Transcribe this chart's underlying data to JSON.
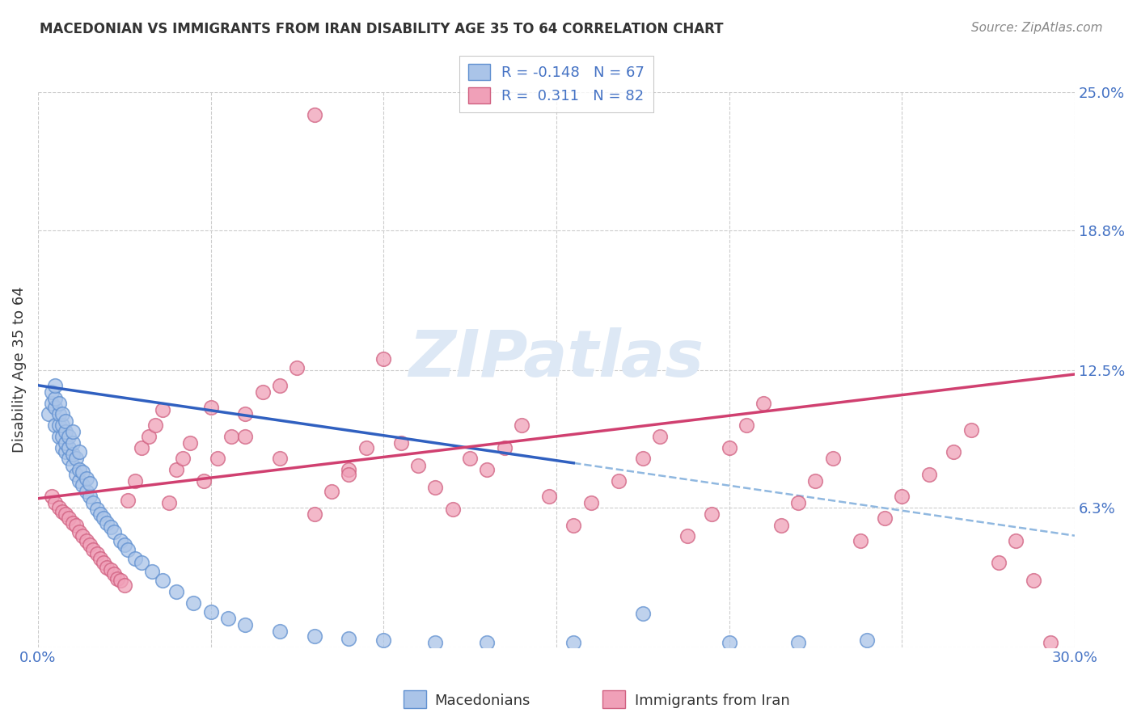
{
  "title": "MACEDONIAN VS IMMIGRANTS FROM IRAN DISABILITY AGE 35 TO 64 CORRELATION CHART",
  "source": "Source: ZipAtlas.com",
  "ylabel": "Disability Age 35 to 64",
  "xlim": [
    0.0,
    0.3
  ],
  "ylim": [
    0.0,
    0.25
  ],
  "xticks": [
    0.0,
    0.05,
    0.1,
    0.15,
    0.2,
    0.25,
    0.3
  ],
  "ytick_positions": [
    0.0,
    0.063,
    0.125,
    0.188,
    0.25
  ],
  "yticklabels": [
    "",
    "6.3%",
    "12.5%",
    "18.8%",
    "25.0%"
  ],
  "color_macedonian_fill": "#aac4e8",
  "color_macedonian_edge": "#6090d0",
  "color_iran_fill": "#f0a0b8",
  "color_iran_edge": "#d06080",
  "color_line_macedonian": "#3060c0",
  "color_line_iran": "#d04070",
  "color_dashed": "#90b8e0",
  "color_grid": "#cccccc",
  "color_title": "#333333",
  "color_axis_text": "#4472c4",
  "color_source": "#888888",
  "color_ylabel": "#333333",
  "watermark_color": "#dde8f5",
  "legend_text_color": "#4472c4",
  "mac_R": "-0.148",
  "mac_N": "67",
  "iran_R": "0.311",
  "iran_N": "82",
  "mac_trend_x0": 0.0,
  "mac_trend_y0": 0.118,
  "mac_trend_x1": 0.155,
  "mac_trend_y1": 0.083,
  "iran_trend_x0": 0.0,
  "iran_trend_y0": 0.067,
  "iran_trend_x1": 0.3,
  "iran_trend_y1": 0.123,
  "mac_scatter_x": [
    0.003,
    0.004,
    0.004,
    0.005,
    0.005,
    0.005,
    0.005,
    0.006,
    0.006,
    0.006,
    0.006,
    0.007,
    0.007,
    0.007,
    0.007,
    0.008,
    0.008,
    0.008,
    0.008,
    0.009,
    0.009,
    0.009,
    0.01,
    0.01,
    0.01,
    0.01,
    0.011,
    0.011,
    0.012,
    0.012,
    0.012,
    0.013,
    0.013,
    0.014,
    0.014,
    0.015,
    0.015,
    0.016,
    0.017,
    0.018,
    0.019,
    0.02,
    0.021,
    0.022,
    0.024,
    0.025,
    0.026,
    0.028,
    0.03,
    0.033,
    0.036,
    0.04,
    0.045,
    0.05,
    0.055,
    0.06,
    0.07,
    0.08,
    0.09,
    0.1,
    0.115,
    0.13,
    0.155,
    0.175,
    0.2,
    0.22,
    0.24
  ],
  "mac_scatter_y": [
    0.105,
    0.11,
    0.115,
    0.1,
    0.108,
    0.112,
    0.118,
    0.095,
    0.1,
    0.105,
    0.11,
    0.09,
    0.095,
    0.1,
    0.105,
    0.088,
    0.092,
    0.097,
    0.102,
    0.085,
    0.09,
    0.095,
    0.082,
    0.087,
    0.092,
    0.097,
    0.078,
    0.085,
    0.075,
    0.08,
    0.088,
    0.073,
    0.079,
    0.07,
    0.076,
    0.068,
    0.074,
    0.065,
    0.062,
    0.06,
    0.058,
    0.056,
    0.054,
    0.052,
    0.048,
    0.046,
    0.044,
    0.04,
    0.038,
    0.034,
    0.03,
    0.025,
    0.02,
    0.016,
    0.013,
    0.01,
    0.007,
    0.005,
    0.004,
    0.003,
    0.002,
    0.002,
    0.002,
    0.015,
    0.002,
    0.002,
    0.003
  ],
  "iran_scatter_x": [
    0.004,
    0.005,
    0.006,
    0.007,
    0.008,
    0.009,
    0.01,
    0.011,
    0.012,
    0.013,
    0.014,
    0.015,
    0.016,
    0.017,
    0.018,
    0.019,
    0.02,
    0.021,
    0.022,
    0.023,
    0.024,
    0.025,
    0.026,
    0.028,
    0.03,
    0.032,
    0.034,
    0.036,
    0.038,
    0.04,
    0.042,
    0.044,
    0.048,
    0.052,
    0.056,
    0.06,
    0.065,
    0.07,
    0.075,
    0.08,
    0.085,
    0.09,
    0.095,
    0.1,
    0.105,
    0.11,
    0.115,
    0.12,
    0.125,
    0.13,
    0.135,
    0.14,
    0.148,
    0.155,
    0.16,
    0.168,
    0.175,
    0.18,
    0.188,
    0.195,
    0.2,
    0.205,
    0.21,
    0.215,
    0.22,
    0.225,
    0.23,
    0.238,
    0.245,
    0.25,
    0.258,
    0.265,
    0.27,
    0.278,
    0.283,
    0.288,
    0.293,
    0.05,
    0.06,
    0.07,
    0.08,
    0.09
  ],
  "iran_scatter_y": [
    0.068,
    0.065,
    0.063,
    0.061,
    0.06,
    0.058,
    0.056,
    0.055,
    0.052,
    0.05,
    0.048,
    0.046,
    0.044,
    0.042,
    0.04,
    0.038,
    0.036,
    0.035,
    0.033,
    0.031,
    0.03,
    0.028,
    0.066,
    0.075,
    0.09,
    0.095,
    0.1,
    0.107,
    0.065,
    0.08,
    0.085,
    0.092,
    0.075,
    0.085,
    0.095,
    0.105,
    0.115,
    0.118,
    0.126,
    0.06,
    0.07,
    0.08,
    0.09,
    0.13,
    0.092,
    0.082,
    0.072,
    0.062,
    0.085,
    0.08,
    0.09,
    0.1,
    0.068,
    0.055,
    0.065,
    0.075,
    0.085,
    0.095,
    0.05,
    0.06,
    0.09,
    0.1,
    0.11,
    0.055,
    0.065,
    0.075,
    0.085,
    0.048,
    0.058,
    0.068,
    0.078,
    0.088,
    0.098,
    0.038,
    0.048,
    0.03,
    0.002,
    0.108,
    0.095,
    0.085,
    0.24,
    0.078
  ]
}
